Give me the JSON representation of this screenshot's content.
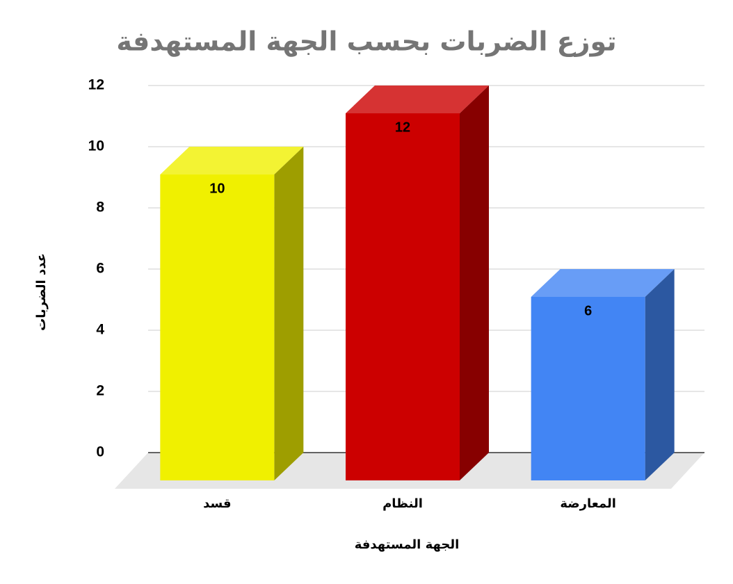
{
  "chart_data": {
    "type": "bar3d",
    "title": "توزع الضربات بحسب الجهة المستهدفة",
    "x_label": "الجهة المستهدفة",
    "y_label": "عدد الضربات",
    "categories": [
      "قسد",
      "النظام",
      "المعارضة"
    ],
    "values": [
      10,
      12,
      6
    ],
    "colors": [
      "#f0f000",
      "#cc0000",
      "#4285f4"
    ],
    "ylim": [
      0,
      12
    ],
    "yticks": [
      0,
      2,
      4,
      6,
      8,
      10,
      12
    ],
    "grid": true
  }
}
